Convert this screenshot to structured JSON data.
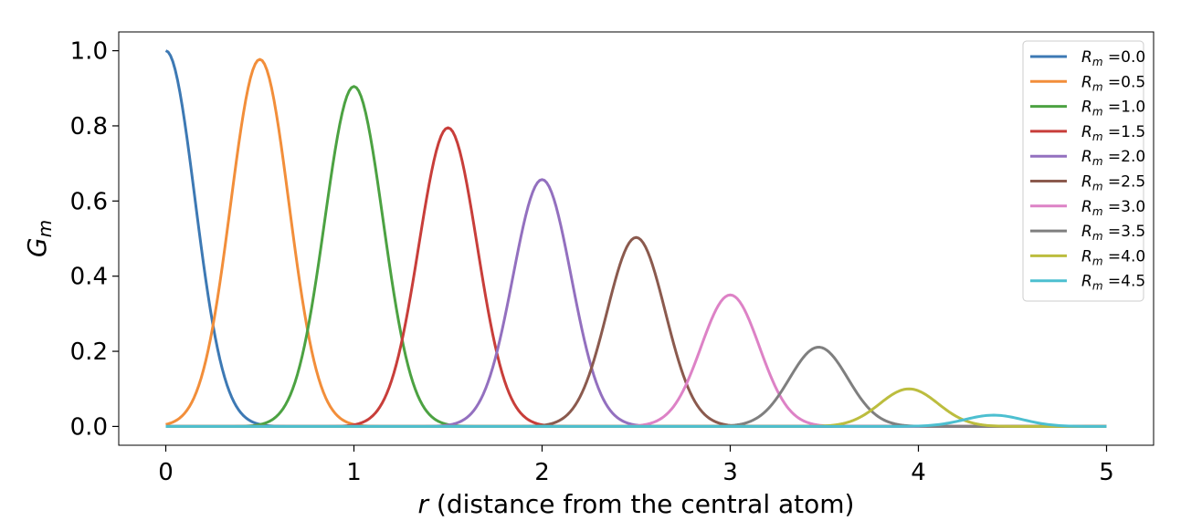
{
  "chart_data": {
    "type": "line",
    "title": "",
    "xlabel_var": "r",
    "xlabel_rest": " (distance from the central atom)",
    "ylabel_main": "G",
    "ylabel_sub": "m",
    "xlim": [
      -0.25,
      5.25
    ],
    "ylim": [
      -0.05,
      1.05
    ],
    "xticks": [
      0,
      1,
      2,
      3,
      4,
      5
    ],
    "yticks": [
      0.0,
      0.2,
      0.4,
      0.6,
      0.8,
      1.0
    ],
    "xtick_labels": [
      "0",
      "1",
      "2",
      "3",
      "4",
      "5"
    ],
    "ytick_labels": [
      "0.0",
      "0.2",
      "0.4",
      "0.6",
      "0.8",
      "1.0"
    ],
    "grid": false,
    "legend_position": "top-right",
    "legend_prefix_main": "R",
    "legend_prefix_sub": "m",
    "legend_equals": " =",
    "curve_form": "gaussian",
    "x_domain": [
      0,
      5
    ],
    "series": [
      {
        "name": "0.0",
        "center": 0.0,
        "peak": 1.0,
        "sigma": 0.155,
        "color": "#3d79b4"
      },
      {
        "name": "0.5",
        "center": 0.5,
        "peak": 0.977,
        "sigma": 0.155,
        "color": "#f28e3a"
      },
      {
        "name": "1.0",
        "center": 1.0,
        "peak": 0.905,
        "sigma": 0.155,
        "color": "#4ca242"
      },
      {
        "name": "1.5",
        "center": 1.5,
        "peak": 0.795,
        "sigma": 0.155,
        "color": "#c83e3a"
      },
      {
        "name": "2.0",
        "center": 2.0,
        "peak": 0.657,
        "sigma": 0.155,
        "color": "#9370bf"
      },
      {
        "name": "2.5",
        "center": 2.5,
        "peak": 0.503,
        "sigma": 0.155,
        "color": "#8b5a4e"
      },
      {
        "name": "3.0",
        "center": 3.0,
        "peak": 0.35,
        "sigma": 0.155,
        "color": "#dd82c6"
      },
      {
        "name": "3.5",
        "center": 3.47,
        "peak": 0.211,
        "sigma": 0.155,
        "color": "#7f7f7f"
      },
      {
        "name": "4.0",
        "center": 3.95,
        "peak": 0.1,
        "sigma": 0.155,
        "color": "#bcbd3e"
      },
      {
        "name": "4.5",
        "center": 4.4,
        "peak": 0.03,
        "sigma": 0.155,
        "color": "#4cbfd0"
      }
    ]
  }
}
